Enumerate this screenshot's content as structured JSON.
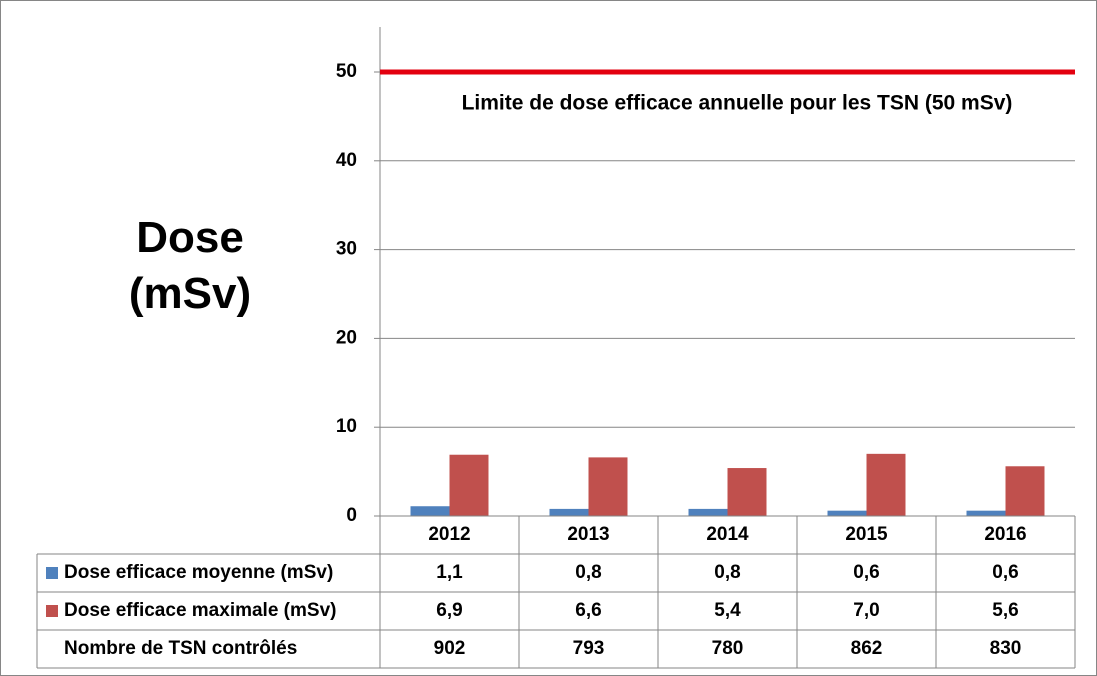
{
  "chart_data": {
    "type": "bar",
    "ylabel": [
      "Dose",
      "(mSv)"
    ],
    "ylim": [
      0,
      55
    ],
    "yticks": [
      0,
      10,
      20,
      30,
      40,
      50
    ],
    "grid": true,
    "categories": [
      "2012",
      "2013",
      "2014",
      "2015",
      "2016"
    ],
    "series": [
      {
        "name": "Dose efficace moyenne (mSv)",
        "values": [
          1.1,
          0.8,
          0.8,
          0.6,
          0.6
        ],
        "labels": [
          "1,1",
          "0,8",
          "0,8",
          "0,6",
          "0,6"
        ],
        "color": "#4F81BD"
      },
      {
        "name": "Dose efficace maximale (mSv)",
        "values": [
          6.9,
          6.6,
          5.4,
          7.0,
          5.6
        ],
        "labels": [
          "6,9",
          "6,6",
          "5,4",
          "7,0",
          "5,6"
        ],
        "color": "#C0504D"
      }
    ],
    "table_extra_row": {
      "name": "Nombre de TSN contrôlés",
      "values": [
        "902",
        "793",
        "780",
        "862",
        "830"
      ]
    },
    "reference_line": {
      "value": 50,
      "color": "#E3000F",
      "label": "Limite de dose efficace annuelle pour les TSN (50 mSv)"
    }
  }
}
